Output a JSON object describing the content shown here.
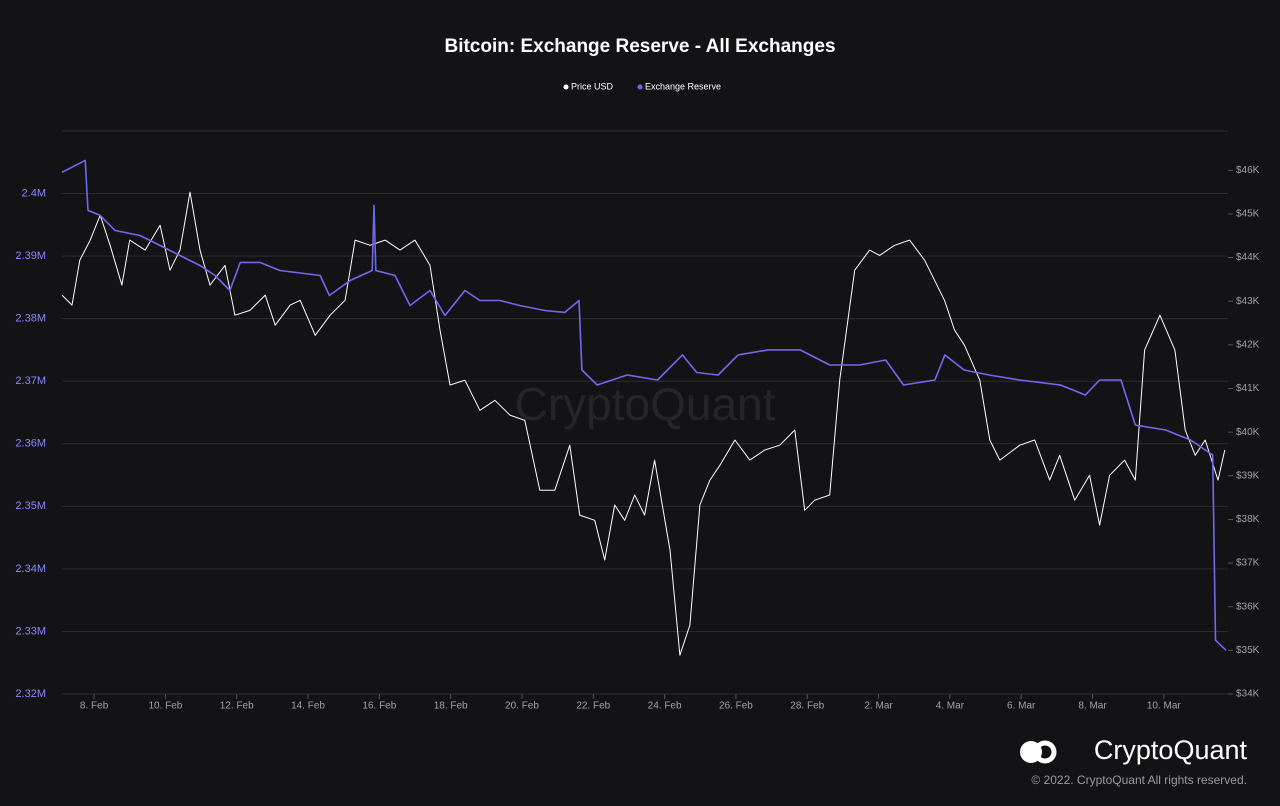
{
  "chart_data": {
    "type": "line",
    "title": "Bitcoin: Exchange Reserve - All Exchanges",
    "watermark": "CryptoQuant",
    "brand": "CryptoQuant",
    "copyright": "© 2022. CryptoQuant All rights reserved.",
    "xlim": [
      7.1,
      39.8
    ],
    "xticks": [
      {
        "value": 8,
        "label": "8. Feb"
      },
      {
        "value": 10,
        "label": "10. Feb"
      },
      {
        "value": 12,
        "label": "12. Feb"
      },
      {
        "value": 14,
        "label": "14. Feb"
      },
      {
        "value": 16,
        "label": "16. Feb"
      },
      {
        "value": 18,
        "label": "18. Feb"
      },
      {
        "value": 20,
        "label": "20. Feb"
      },
      {
        "value": 22,
        "label": "22. Feb"
      },
      {
        "value": 24,
        "label": "24. Feb"
      },
      {
        "value": 26,
        "label": "26. Feb"
      },
      {
        "value": 28,
        "label": "28. Feb"
      },
      {
        "value": 30,
        "label": "2. Mar"
      },
      {
        "value": 32,
        "label": "4. Mar"
      },
      {
        "value": 34,
        "label": "6. Mar"
      },
      {
        "value": 36,
        "label": "8. Mar"
      },
      {
        "value": 38,
        "label": "10. Mar"
      }
    ],
    "ylim": [
      2320000,
      2410000
    ],
    "yticks": [
      {
        "value": 2320000,
        "label": "2.32M"
      },
      {
        "value": 2330000,
        "label": "2.33M"
      },
      {
        "value": 2340000,
        "label": "2.34M"
      },
      {
        "value": 2350000,
        "label": "2.35M"
      },
      {
        "value": 2360000,
        "label": "2.36M"
      },
      {
        "value": 2370000,
        "label": "2.37M"
      },
      {
        "value": 2380000,
        "label": "2.38M"
      },
      {
        "value": 2390000,
        "label": "2.39M"
      },
      {
        "value": 2400000,
        "label": "2.4M"
      }
    ],
    "y2lim": [
      34000,
      46900
    ],
    "y2ticks": [
      {
        "value": 34000,
        "label": "$34K"
      },
      {
        "value": 35000,
        "label": "$35K"
      },
      {
        "value": 36000,
        "label": "$36K"
      },
      {
        "value": 37000,
        "label": "$37K"
      },
      {
        "value": 38000,
        "label": "$38K"
      },
      {
        "value": 39000,
        "label": "$39K"
      },
      {
        "value": 40000,
        "label": "$40K"
      },
      {
        "value": 41000,
        "label": "$41K"
      },
      {
        "value": 42000,
        "label": "$42K"
      },
      {
        "value": 43000,
        "label": "$43K"
      },
      {
        "value": 44000,
        "label": "$44K"
      },
      {
        "value": 45000,
        "label": "$45K"
      },
      {
        "value": 46000,
        "label": "$46K"
      }
    ],
    "grid": true,
    "series": [
      {
        "name": "Price USD",
        "color": "#ffffff",
        "axis": "y2",
        "x": [
          7.1,
          7.38,
          7.6,
          7.89,
          8.17,
          8.45,
          8.78,
          9.0,
          9.43,
          9.85,
          10.13,
          10.41,
          10.69,
          10.97,
          11.25,
          11.67,
          11.95,
          12.37,
          12.8,
          13.08,
          13.5,
          13.78,
          14.2,
          14.62,
          15.04,
          15.32,
          15.74,
          16.16,
          16.58,
          17.0,
          17.42,
          17.7,
          17.98,
          18.4,
          18.82,
          19.24,
          19.66,
          20.08,
          20.5,
          20.92,
          21.34,
          21.62,
          22.04,
          22.32,
          22.6,
          22.88,
          23.16,
          23.44,
          23.72,
          24.15,
          24.43,
          24.71,
          24.99,
          25.27,
          25.55,
          25.97,
          26.39,
          26.81,
          27.23,
          27.65,
          27.93,
          28.21,
          28.63,
          28.91,
          29.33,
          29.75,
          30.03,
          30.45,
          30.87,
          31.29,
          31.85,
          32.13,
          32.41,
          32.84,
          33.12,
          33.4,
          33.96,
          34.38,
          34.8,
          35.08,
          35.5,
          35.92,
          36.2,
          36.48,
          36.9,
          37.2,
          37.46,
          37.89,
          38.31,
          38.6,
          38.88,
          39.16,
          39.52,
          39.71
        ],
        "values": [
          43140,
          42910,
          43940,
          44400,
          44970,
          44280,
          43370,
          44400,
          44170,
          44740,
          43710,
          44170,
          45500,
          44170,
          43370,
          43820,
          42680,
          42790,
          43140,
          42450,
          42910,
          43020,
          42220,
          42680,
          43020,
          44400,
          44280,
          44400,
          44170,
          44400,
          43820,
          42340,
          41080,
          41190,
          40500,
          40730,
          40390,
          40270,
          38670,
          38670,
          39700,
          38100,
          37980,
          37070,
          38330,
          37980,
          38560,
          38100,
          39360,
          37300,
          34890,
          35580,
          38330,
          38900,
          39240,
          39820,
          39360,
          39590,
          39700,
          40050,
          38210,
          38440,
          38560,
          41190,
          43710,
          44170,
          44050,
          44280,
          44400,
          43940,
          43020,
          42340,
          41990,
          41190,
          39820,
          39360,
          39700,
          39820,
          38900,
          39470,
          38440,
          39010,
          37870,
          39010,
          39360,
          38900,
          41880,
          42680,
          41880,
          40050,
          39470,
          39820,
          38900,
          39590
        ]
      },
      {
        "name": "Exchange Reserve",
        "color": "#7367f0",
        "x": [
          7.1,
          7.75,
          7.83,
          8.17,
          8.59,
          9.29,
          9.85,
          10.41,
          10.97,
          11.39,
          11.81,
          12.1,
          12.65,
          13.21,
          14.34,
          14.6,
          15.18,
          15.8,
          15.85,
          15.9,
          16.44,
          16.86,
          17.42,
          17.84,
          18.4,
          18.82,
          19.38,
          19.94,
          20.64,
          21.2,
          21.6,
          21.68,
          22.11,
          22.95,
          23.8,
          24.5,
          24.9,
          25.5,
          26.06,
          26.9,
          27.8,
          28.63,
          29.47,
          30.2,
          30.7,
          31.58,
          31.86,
          32.4,
          33.1,
          33.96,
          35.1,
          35.8,
          36.2,
          36.8,
          37.2,
          38.05,
          38.75,
          39.37,
          39.45,
          39.74
        ],
        "values": [
          2403400,
          2405300,
          2397300,
          2396500,
          2394100,
          2393300,
          2391700,
          2390100,
          2388500,
          2386900,
          2384500,
          2389000,
          2389000,
          2387700,
          2386900,
          2383700,
          2386100,
          2387700,
          2398100,
          2387700,
          2386900,
          2382100,
          2384500,
          2380500,
          2384500,
          2382900,
          2382900,
          2382100,
          2381300,
          2381000,
          2382900,
          2371800,
          2369400,
          2371000,
          2370200,
          2374200,
          2371400,
          2371000,
          2374200,
          2375000,
          2375000,
          2372600,
          2372600,
          2373400,
          2369400,
          2370200,
          2374200,
          2371800,
          2371000,
          2370200,
          2369400,
          2367800,
          2370200,
          2370200,
          2363000,
          2362200,
          2360600,
          2358200,
          2328600,
          2327000
        ]
      }
    ]
  }
}
